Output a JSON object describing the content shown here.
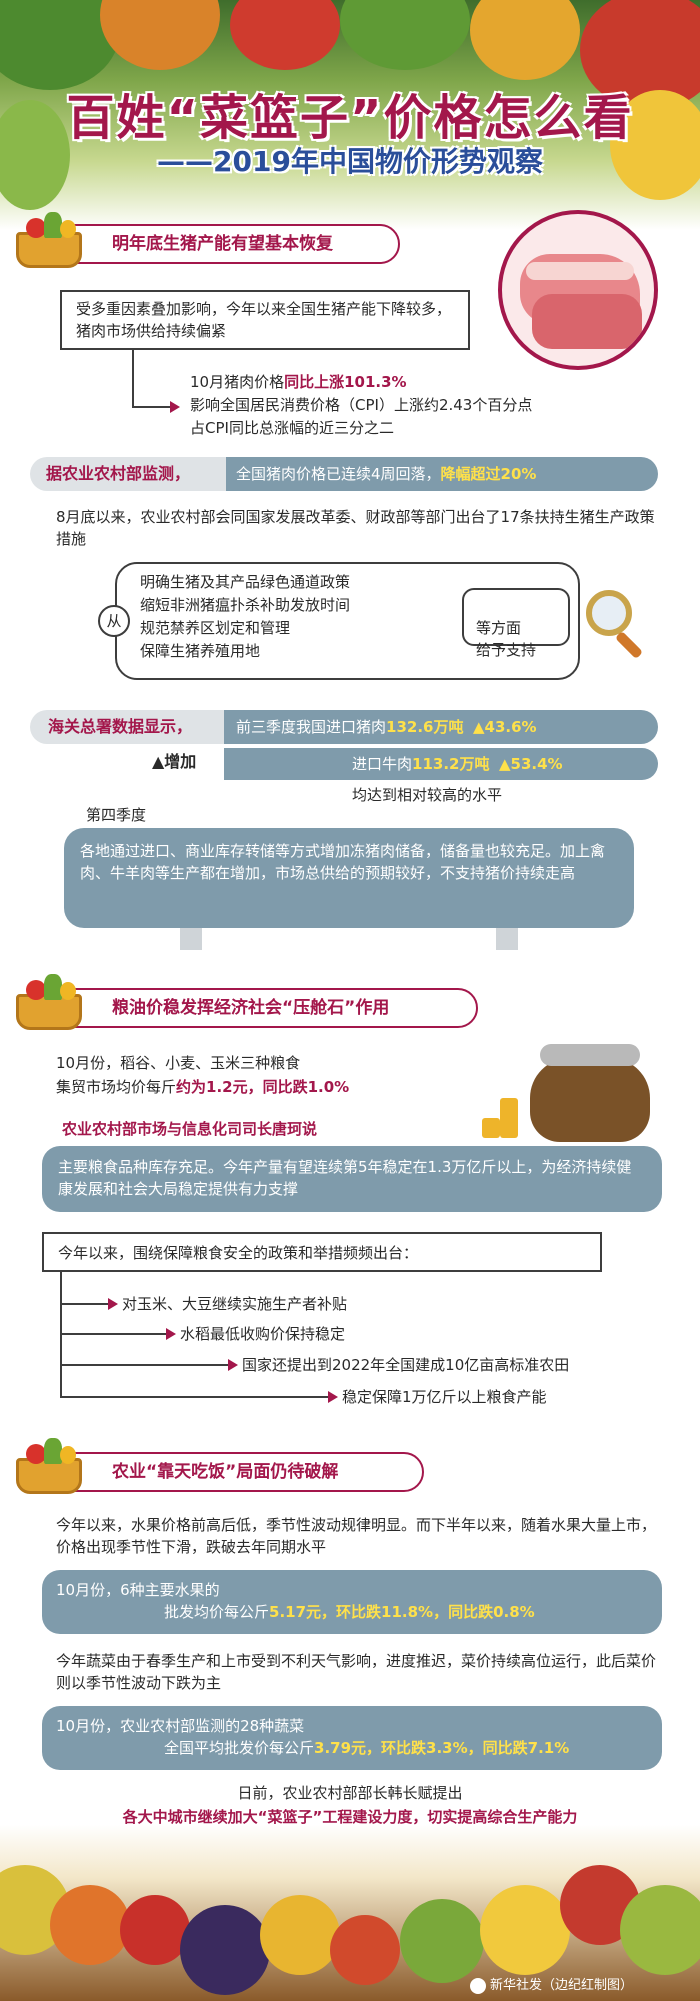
{
  "header": {
    "title": "百姓“菜篮子”价格怎么看",
    "subtitle": "——2019年中国物价形势观察"
  },
  "section1": {
    "heading": "明年底生猪产能有望基本恢复",
    "intro": "受多重因素叠加影响，今年以来全国生猪产能下降较多，猪肉市场供给持续偏紧",
    "price_a": "10月猪肉价格",
    "price_b": "同比上涨101.3%",
    "cpi_line1": "影响全国居民消费价格（CPI）上涨约2.43个百分点",
    "cpi_line2": "占CPI同比总涨幅的近三分之二",
    "ministry_source": "据农业农村部监测，",
    "ministry_text": "全国猪肉价格已连续4周回落，",
    "ministry_highlight": "降幅超过20%",
    "policy_text": "8月底以来，农业农村部会同国家发展改革委、财政部等部门出台了17条扶持生猪生产政策措施",
    "from_label": "从",
    "policy_items": [
      "明确生猪及其产品绿色通道政策",
      "缩短非洲猪瘟扑杀补助发放时间",
      "规范禁养区划定和管理",
      "保障生猪养殖用地"
    ],
    "support_label": "等方面\n给予支持",
    "customs_source": "海关总署数据显示，",
    "pork_import_a": "前三季度我国进口猪肉",
    "pork_import_b": "132.6万吨",
    "pork_import_c": "▲43.6%",
    "increase_label": "▲增加",
    "beef_import_a": "进口牛肉",
    "beef_import_b": "113.2万吨",
    "beef_import_c": "▲53.4%",
    "import_summary": "均达到相对较高的水平",
    "q4_label": "第四季度",
    "q4_text": "各地通过进口、商业库存转储等方式增加冻猪肉储备，储备量也较充足。加上禽肉、牛羊肉等生产都在增加，市场总供给的预期较好，不支持猪价持续走高"
  },
  "section2": {
    "heading": "粮油价稳发挥经济社会“压舱石”作用",
    "grain_line1": "10月份，稻谷、小麦、玉米三种粮食",
    "grain_line2a": "集贸市场均价每斤",
    "grain_line2b": "约为1.2元，同比跌1.0%",
    "official": "农业农村部市场与信息化司司长唐珂说",
    "quote": "主要粮食品种库存充足。今年产量有望连续第5年稳定在1.3万亿斤以上，为经济持续健康发展和社会大局稳定提供有力支撑",
    "measures_intro": "今年以来，围绕保障粮食安全的政策和举措频频出台：",
    "measures": [
      "对玉米、大豆继续实施生产者补贴",
      "水稻最低收购价保持稳定",
      "国家还提出到2022年全国建成10亿亩高标准农田",
      "稳定保障1万亿斤以上粮食产能"
    ]
  },
  "section3": {
    "heading": "农业“靠天吃饭”局面仍待破解",
    "fruit_text": "今年以来，水果价格前高后低，季节性波动规律明显。而下半年以来，随着水果大量上市，价格出现季节性下滑，跌破去年同期水平",
    "fruit_box_line1": "10月份，6种主要水果的",
    "fruit_box_line2a": "批发均价每公斤",
    "fruit_box_line2b": "5.17元，环比跌11.8%，同比跌0.8%",
    "veg_text": "今年蔬菜由于春季生产和上市受到不利天气影响，进度推迟，菜价持续高位运行，此后菜价则以季节性波动下跌为主",
    "veg_box_line1": "10月份，农业农村部监测的28种蔬菜",
    "veg_box_line2a": "全国平均批发价每公斤",
    "veg_box_line2b": "3.79元，环比跌3.3%，同比跌7.1%",
    "closing_line1": "日前，农业农村部部长韩长赋提出",
    "closing_line2": "各大中城市继续加大“菜篮子”工程建设力度，切实提高综合生产能力"
  },
  "footer": {
    "credit": "新华社发（边纪红制图）"
  },
  "colors": {
    "accent": "#a3174b",
    "blue_box": "#7f9bab",
    "highlight_yellow": "#ffe14a"
  }
}
